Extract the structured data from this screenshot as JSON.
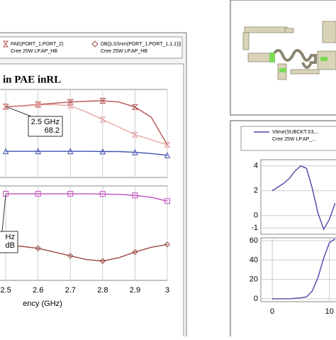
{
  "left_window": {
    "title": "in PAE inRL",
    "legend": [
      {
        "label": "PAE(PORT_1,PORT_2)",
        "sublabel": "Cree 25W LP.AP_HB"
      },
      {
        "label": "DB(|LSSnm(PORT_1,PORT_1,1,1)|)",
        "sublabel": "Cree 25W LP.AP_HB"
      }
    ]
  },
  "right_window": {
    "legend": [
      {
        "label": "Vtime(SUBCKT.S3,...",
        "sublabel": "Cree 25W LP.AP_..."
      }
    ]
  },
  "chart_data": [
    {
      "type": "line",
      "xlim": [
        2.48,
        3
      ],
      "xticks": [
        2.5,
        2.6,
        2.7,
        2.8,
        2.9,
        3
      ],
      "ylim": [
        40,
        75
      ],
      "x": [
        2.5,
        2.55,
        2.6,
        2.65,
        2.7,
        2.75,
        2.8,
        2.85,
        2.9,
        2.95,
        3
      ],
      "annotations": [
        "2.5 GHz",
        "68.2"
      ],
      "series": [
        {
          "color": "#b5524f",
          "marker": "hourglass",
          "values": [
            68.2,
            68.5,
            69,
            69.5,
            70,
            70.3,
            70.5,
            70,
            68,
            64,
            53
          ]
        },
        {
          "color": "#e8a6a6",
          "marker": "hourglass",
          "values": [
            68,
            68.3,
            68.8,
            69,
            68.5,
            66,
            63,
            60,
            57,
            55,
            53
          ]
        },
        {
          "color": "#4453b3",
          "marker": "triangle",
          "values": [
            50.4,
            50.4,
            50.4,
            50.4,
            50.4,
            50.4,
            50.3,
            50.3,
            50,
            49.5,
            48.8
          ]
        }
      ]
    },
    {
      "type": "line",
      "xlim": [
        2.48,
        3
      ],
      "xticks": [
        2.5,
        2.6,
        2.7,
        2.8,
        2.9,
        3
      ],
      "ylim": [
        0,
        100
      ],
      "x": [
        2.5,
        2.55,
        2.6,
        2.65,
        2.7,
        2.75,
        2.8,
        2.85,
        2.9,
        2.95,
        3
      ],
      "xlabel": "ency (GHz)",
      "annotations": [
        "Hz",
        "dB"
      ],
      "series": [
        {
          "color": "#c04fc0",
          "marker": "square",
          "values": [
            91.7,
            91.7,
            91.7,
            91.7,
            91.7,
            91.7,
            91.5,
            91,
            90,
            88,
            84
          ]
        },
        {
          "color": "#9c4a46",
          "marker": "diamond",
          "values": [
            37,
            36,
            34,
            30,
            26,
            22,
            20.5,
            24,
            30,
            35,
            38
          ]
        }
      ]
    },
    {
      "type": "line",
      "xlim": [
        -2,
        11.4
      ],
      "ylim": [
        -1.5,
        4.5
      ],
      "yticks": [
        4,
        2,
        0,
        -1
      ],
      "x": [
        0,
        1,
        2,
        3,
        4,
        5,
        6,
        7,
        8,
        9,
        10,
        11
      ],
      "series": [
        {
          "color": "#5b3fa8",
          "values": [
            2,
            2.3,
            2.6,
            3,
            3.6,
            4,
            3.8,
            2.2,
            0.2,
            -1.1,
            -0.3,
            1.0
          ]
        }
      ]
    },
    {
      "type": "line",
      "xlim": [
        -2,
        11.4
      ],
      "xticks": [
        0,
        10
      ],
      "ylim": [
        -3,
        63
      ],
      "yticks": [
        60,
        40,
        20,
        0
      ],
      "x": [
        0,
        1,
        2,
        3,
        4,
        5,
        6,
        7,
        8,
        9,
        10,
        11
      ],
      "series": [
        {
          "color": "#5b3fa8",
          "values": [
            0,
            0,
            0,
            0,
            0.5,
            1,
            2,
            8,
            22,
            42,
            58,
            62
          ]
        }
      ]
    }
  ]
}
